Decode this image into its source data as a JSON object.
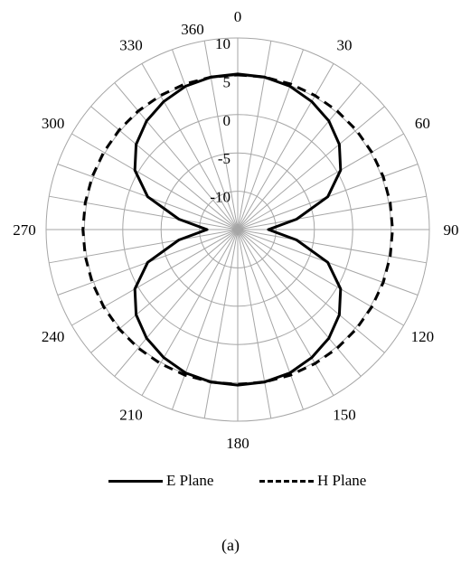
{
  "chart_data": {
    "type": "polar-line",
    "title": "",
    "angle_unit": "degrees",
    "angle_tick_labels": [
      "0",
      "30",
      "60",
      "90",
      "120",
      "150",
      "180",
      "210",
      "240",
      "270",
      "300",
      "330",
      "360"
    ],
    "radial_tick_labels": [
      "10",
      "5",
      "0",
      "-5",
      "-10"
    ],
    "rlim": [
      -15,
      10
    ],
    "grid": true,
    "legend_position": "bottom",
    "series": [
      {
        "name": "E Plane",
        "line_style": "solid",
        "color": "#000000",
        "angles": [
          0,
          10,
          20,
          30,
          40,
          50,
          60,
          70,
          80,
          90,
          100,
          110,
          120,
          130,
          140,
          150,
          160,
          170,
          180,
          190,
          200,
          210,
          220,
          230,
          240,
          250,
          260,
          270,
          280,
          290,
          300,
          310,
          320,
          330,
          340,
          350,
          360
        ],
        "values": [
          5.3,
          5.2,
          4.9,
          4.3,
          3.5,
          2.3,
          0.5,
          -2.5,
          -7.2,
          -11,
          -7.2,
          -2.5,
          0.5,
          2.3,
          3.5,
          4.3,
          4.9,
          5.2,
          5.3,
          5.2,
          4.9,
          4.3,
          3.5,
          2.3,
          0.5,
          -2.5,
          -7.2,
          -11,
          -7.2,
          -2.5,
          0.5,
          2.3,
          3.5,
          4.3,
          4.9,
          5.2,
          5.3
        ]
      },
      {
        "name": "H Plane",
        "line_style": "dashed",
        "color": "#000000",
        "angles": [
          0,
          10,
          20,
          30,
          40,
          50,
          60,
          70,
          80,
          90,
          100,
          110,
          120,
          130,
          140,
          150,
          160,
          170,
          180,
          190,
          200,
          210,
          220,
          230,
          240,
          250,
          260,
          270,
          280,
          290,
          300,
          310,
          320,
          330,
          340,
          350,
          360
        ],
        "values": [
          5.2,
          5.2,
          5.2,
          5.2,
          5.2,
          5.2,
          5.2,
          5.2,
          5.2,
          5.2,
          5.2,
          5.2,
          5.2,
          5.2,
          5.2,
          5.2,
          5.2,
          5.2,
          5.2,
          5.2,
          5.2,
          5.2,
          5.2,
          5.2,
          5.2,
          5.2,
          5.2,
          5.2,
          5.2,
          5.2,
          5.2,
          5.2,
          5.2,
          5.2,
          5.2,
          5.2,
          5.2
        ]
      }
    ]
  },
  "legend": {
    "e_plane_label": "E Plane",
    "h_plane_label": "H Plane"
  },
  "caption": "(a)"
}
